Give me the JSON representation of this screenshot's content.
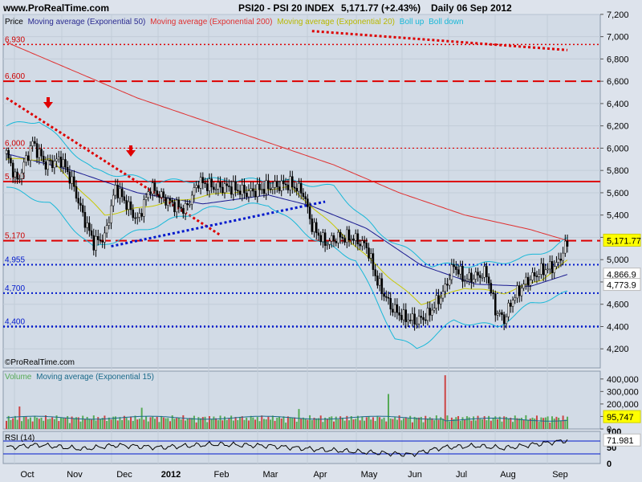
{
  "header": {
    "site": "www.ProRealTime.com",
    "instrument": "PSI20 - PSI 20 INDEX",
    "quote": "5,171.77 (+2.43%)",
    "period": "Daily  06 Sep 2012"
  },
  "colors": {
    "panel_bg": "#d2dbe6",
    "ema50": "#1a1a90",
    "ema200": "#e03030",
    "ema20": "#c8c800",
    "boll": "#18b8d8",
    "red_line": "#dd0000",
    "blue_line": "#0018cc",
    "volume": "#55aa55",
    "volume_ma": "#1a6a8a"
  },
  "chart_data": [
    {
      "type": "candlestick",
      "title": "",
      "legend": [
        "Price",
        "Moving average (Exponential 50)",
        "Moving average (Exponential 200)",
        "Moving average (Exponential 20)",
        "Boll up",
        "Boll down"
      ],
      "x_ticks": [
        "Oct",
        "Nov",
        "Dec",
        "2012",
        "Feb",
        "Mar",
        "Apr",
        "May",
        "Jun",
        "Jul",
        "Aug",
        "Sep"
      ],
      "y_ticks": [
        "7,200",
        "7,000",
        "6,800",
        "6,600",
        "6,400",
        "6,200",
        "6,000",
        "5,800",
        "5,600",
        "5,400",
        "5,200",
        "5,000",
        "4,800",
        "4,600",
        "4,400",
        "4,200"
      ],
      "ylim": [
        4000,
        7300
      ],
      "levels": [
        "6,930",
        "6,600",
        "6,000",
        "5,700",
        "5,170",
        "4,955",
        "4,700",
        "4,400"
      ],
      "level_values": [
        6930,
        6600,
        6000,
        5700,
        5170,
        4955,
        4700,
        4400
      ],
      "badges": [
        "5,171.77",
        "4,866.9",
        "4,773.9"
      ],
      "price_keypoints": [
        [
          0,
          5950
        ],
        [
          5,
          5700
        ],
        [
          12,
          6050
        ],
        [
          18,
          5850
        ],
        [
          25,
          5900
        ],
        [
          30,
          5700
        ],
        [
          35,
          5400
        ],
        [
          40,
          5150
        ],
        [
          45,
          5200
        ],
        [
          50,
          5650
        ],
        [
          55,
          5500
        ],
        [
          60,
          5350
        ],
        [
          66,
          5650
        ],
        [
          72,
          5550
        ],
        [
          78,
          5480
        ],
        [
          82,
          5450
        ],
        [
          88,
          5700
        ],
        [
          95,
          5650
        ],
        [
          102,
          5650
        ],
        [
          110,
          5600
        ],
        [
          120,
          5650
        ],
        [
          130,
          5680
        ],
        [
          136,
          5600
        ],
        [
          140,
          5300
        ],
        [
          146,
          5150
        ],
        [
          152,
          5200
        ],
        [
          158,
          5200
        ],
        [
          165,
          5120
        ],
        [
          170,
          4800
        ],
        [
          176,
          4580
        ],
        [
          182,
          4480
        ],
        [
          188,
          4450
        ],
        [
          193,
          4500
        ],
        [
          200,
          4700
        ],
        [
          205,
          4950
        ],
        [
          210,
          4820
        ],
        [
          215,
          4850
        ],
        [
          220,
          4880
        ],
        [
          224,
          4550
        ],
        [
          228,
          4460
        ],
        [
          232,
          4650
        ],
        [
          238,
          4800
        ],
        [
          245,
          4900
        ],
        [
          252,
          4950
        ],
        [
          257,
          5150
        ]
      ],
      "ema200_keypoints": [
        [
          0,
          6950
        ],
        [
          30,
          6700
        ],
        [
          60,
          6450
        ],
        [
          90,
          6250
        ],
        [
          120,
          6050
        ],
        [
          150,
          5850
        ],
        [
          180,
          5600
        ],
        [
          210,
          5400
        ],
        [
          240,
          5270
        ],
        [
          257,
          5171
        ]
      ],
      "ema50_keypoints": [
        [
          0,
          5950
        ],
        [
          30,
          5800
        ],
        [
          60,
          5600
        ],
        [
          90,
          5500
        ],
        [
          120,
          5580
        ],
        [
          140,
          5480
        ],
        [
          165,
          5280
        ],
        [
          190,
          4950
        ],
        [
          215,
          4780
        ],
        [
          240,
          4760
        ],
        [
          257,
          4867
        ]
      ],
      "ema20_keypoints": [
        [
          0,
          5900
        ],
        [
          20,
          5900
        ],
        [
          45,
          5400
        ],
        [
          70,
          5500
        ],
        [
          100,
          5600
        ],
        [
          130,
          5650
        ],
        [
          150,
          5300
        ],
        [
          175,
          4850
        ],
        [
          190,
          4600
        ],
        [
          210,
          4750
        ],
        [
          228,
          4700
        ],
        [
          245,
          4820
        ],
        [
          257,
          4990
        ]
      ],
      "boll_up_keypoints": [
        [
          0,
          6200
        ],
        [
          15,
          6250
        ],
        [
          40,
          5800
        ],
        [
          70,
          5700
        ],
        [
          100,
          5720
        ],
        [
          130,
          5700
        ],
        [
          150,
          5650
        ],
        [
          170,
          5250
        ],
        [
          195,
          4950
        ],
        [
          215,
          4950
        ],
        [
          235,
          5000
        ],
        [
          250,
          5100
        ],
        [
          257,
          5180
        ]
      ],
      "boll_down_keypoints": [
        [
          0,
          5650
        ],
        [
          20,
          5500
        ],
        [
          40,
          5100
        ],
        [
          60,
          5250
        ],
        [
          90,
          5450
        ],
        [
          120,
          5500
        ],
        [
          140,
          5200
        ],
        [
          160,
          5000
        ],
        [
          178,
          4300
        ],
        [
          188,
          4200
        ],
        [
          205,
          4450
        ],
        [
          225,
          4400
        ],
        [
          240,
          4600
        ],
        [
          257,
          4700
        ]
      ],
      "sources": [
        "©ProRealTime.com"
      ]
    },
    {
      "type": "bar",
      "title": "",
      "legend": [
        "Volume",
        "Moving average (Exponential 15)"
      ],
      "y_ticks": [
        "400,000",
        "300,000",
        "200,000",
        "100,000",
        "0"
      ],
      "ylim": [
        0,
        450000
      ],
      "badge": "95,747",
      "avg_level": 90000,
      "spikes": [
        [
          6,
          180000
        ],
        [
          62,
          170000
        ],
        [
          134,
          160000
        ],
        [
          175,
          280000
        ],
        [
          201,
          430000
        ]
      ]
    },
    {
      "type": "line",
      "title": "RSI (14)",
      "y_ticks": [
        "100",
        "50",
        "0"
      ],
      "ylim": [
        0,
        100
      ],
      "levels": [
        70,
        30
      ],
      "badge": "71.981",
      "rsi_keypoints": [
        [
          0,
          50
        ],
        [
          15,
          58
        ],
        [
          35,
          45
        ],
        [
          50,
          57
        ],
        [
          70,
          50
        ],
        [
          95,
          60
        ],
        [
          120,
          55
        ],
        [
          140,
          45
        ],
        [
          165,
          35
        ],
        [
          185,
          28
        ],
        [
          200,
          50
        ],
        [
          215,
          55
        ],
        [
          228,
          48
        ],
        [
          245,
          62
        ],
        [
          257,
          72
        ]
      ]
    }
  ]
}
